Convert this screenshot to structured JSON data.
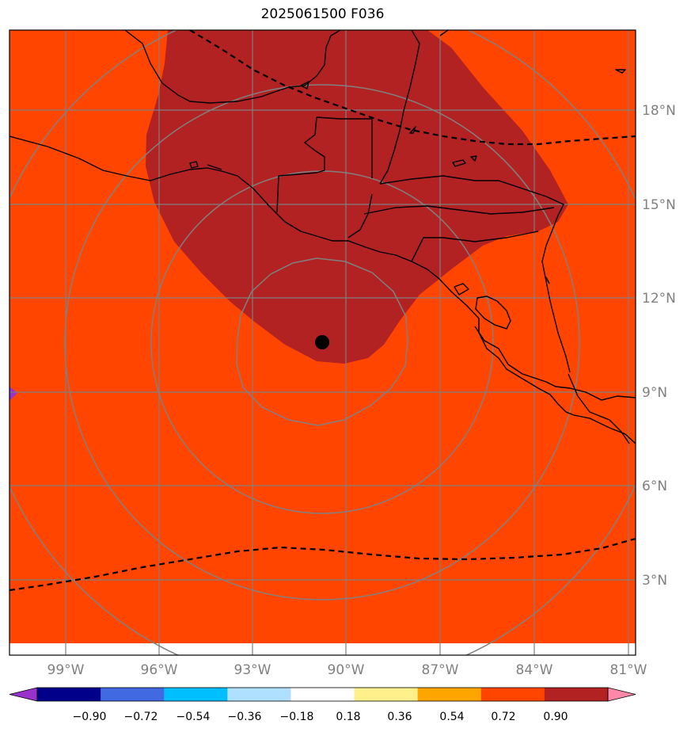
{
  "title": "2025061500 F036",
  "map": {
    "latitude_labels": [
      "18°N",
      "15°N",
      "12°N",
      "9°N",
      "6°N",
      "3°N"
    ],
    "longitude_labels": [
      "99°W",
      "96°W",
      "93°W",
      "90°W",
      "87°W",
      "84°W",
      "81°W"
    ],
    "field_colors": {
      "background": "#ff4500",
      "high": "#b22222",
      "coast": "#000000",
      "grid": "#808080"
    },
    "marker": "storm-center-dot"
  },
  "colorbar": {
    "tick_labels": [
      "−0.90",
      "−0.72",
      "−0.54",
      "−0.36",
      "−0.18",
      "0.18",
      "0.36",
      "0.54",
      "0.72",
      "0.90"
    ],
    "colors": [
      "#9932cc",
      "#00008b",
      "#4169e1",
      "#00bfff",
      "#b0e0ff",
      "#ffffff",
      "#fff08c",
      "#ffa500",
      "#ff4500",
      "#b22222",
      "#ff88aa"
    ]
  }
}
